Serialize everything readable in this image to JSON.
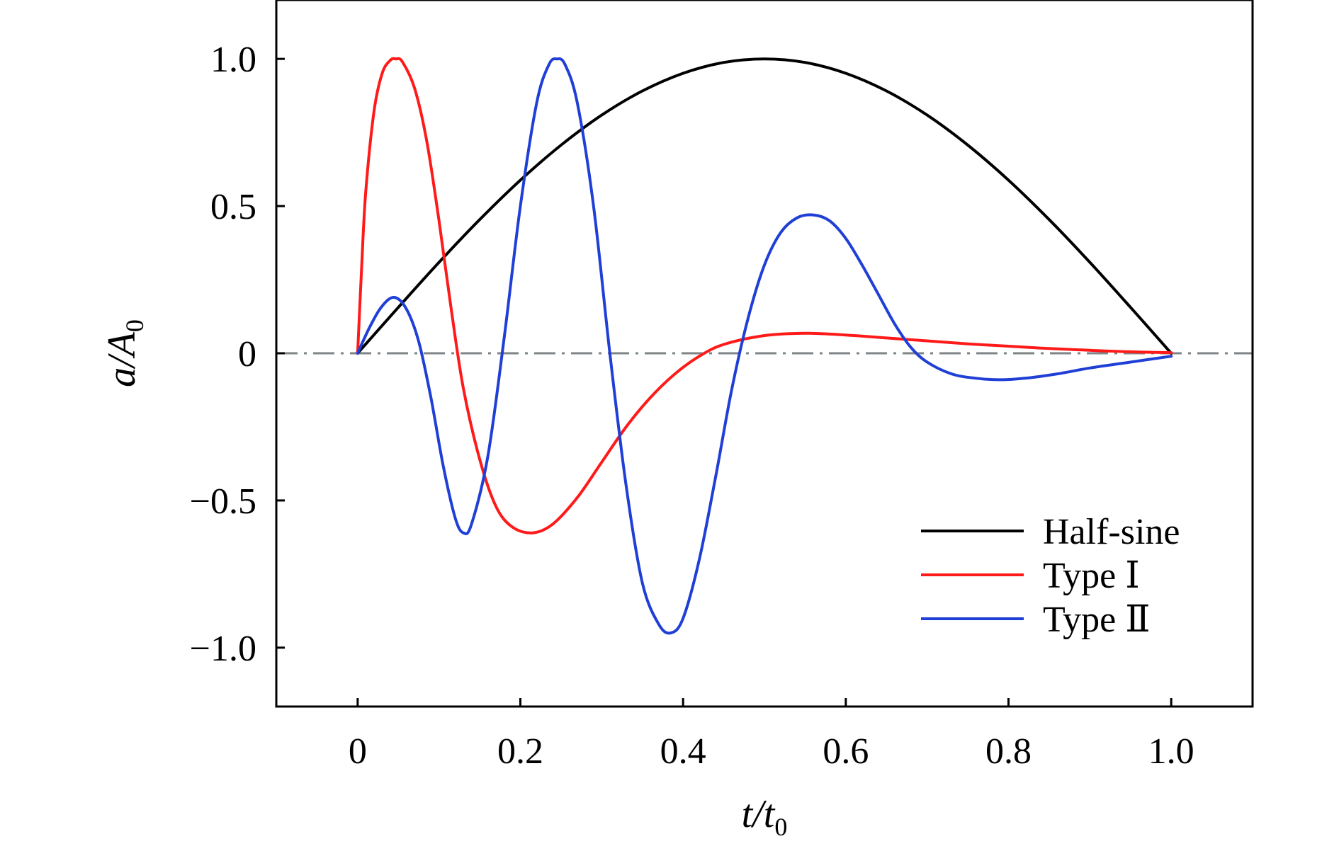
{
  "chart_data": {
    "type": "line",
    "title": "",
    "xlabel": {
      "main": "t/t",
      "sub": "0"
    },
    "ylabel": {
      "main": "a/A",
      "sub": "0"
    },
    "xlim": [
      -0.1,
      1.1
    ],
    "ylim": [
      -1.2,
      1.2
    ],
    "xticks": [
      0,
      0.2,
      0.4,
      0.6,
      0.8,
      1.0
    ],
    "xtick_labels": [
      "0",
      "0.2",
      "0.4",
      "0.6",
      "0.8",
      "1.0"
    ],
    "yticks": [
      1.0,
      0.5,
      0,
      -0.5,
      -1.0
    ],
    "ytick_labels": [
      "1.0",
      "0.5",
      "0",
      "−0.5",
      "−1.0"
    ],
    "grid": false,
    "legend_position": "bottom-right",
    "reference_line": {
      "y": 0,
      "style": "dash-dot",
      "color": "#7f8487"
    },
    "series": [
      {
        "name": "Half-sine",
        "color": "#000000",
        "points": [
          [
            0,
            0
          ],
          [
            0.05,
            0.156
          ],
          [
            0.1,
            0.309
          ],
          [
            0.15,
            0.454
          ],
          [
            0.2,
            0.588
          ],
          [
            0.25,
            0.707
          ],
          [
            0.3,
            0.809
          ],
          [
            0.35,
            0.891
          ],
          [
            0.4,
            0.951
          ],
          [
            0.45,
            0.988
          ],
          [
            0.5,
            1.0
          ],
          [
            0.55,
            0.988
          ],
          [
            0.6,
            0.951
          ],
          [
            0.65,
            0.891
          ],
          [
            0.7,
            0.809
          ],
          [
            0.75,
            0.707
          ],
          [
            0.8,
            0.588
          ],
          [
            0.85,
            0.454
          ],
          [
            0.9,
            0.309
          ],
          [
            0.95,
            0.156
          ],
          [
            1.0,
            0
          ]
        ]
      },
      {
        "name": "Type Ⅰ",
        "color": "#ff1a1a",
        "points": [
          [
            0,
            0
          ],
          [
            0.005,
            0.3
          ],
          [
            0.01,
            0.55
          ],
          [
            0.02,
            0.82
          ],
          [
            0.03,
            0.95
          ],
          [
            0.04,
            0.995
          ],
          [
            0.047,
            1.0
          ],
          [
            0.055,
            0.99
          ],
          [
            0.07,
            0.9
          ],
          [
            0.085,
            0.72
          ],
          [
            0.1,
            0.45
          ],
          [
            0.115,
            0.15
          ],
          [
            0.13,
            -0.12
          ],
          [
            0.15,
            -0.36
          ],
          [
            0.17,
            -0.52
          ],
          [
            0.19,
            -0.59
          ],
          [
            0.215,
            -0.61
          ],
          [
            0.24,
            -0.58
          ],
          [
            0.27,
            -0.49
          ],
          [
            0.3,
            -0.37
          ],
          [
            0.33,
            -0.25
          ],
          [
            0.36,
            -0.15
          ],
          [
            0.39,
            -0.07
          ],
          [
            0.42,
            -0.01
          ],
          [
            0.45,
            0.03
          ],
          [
            0.5,
            0.06
          ],
          [
            0.55,
            0.068
          ],
          [
            0.6,
            0.062
          ],
          [
            0.65,
            0.052
          ],
          [
            0.7,
            0.042
          ],
          [
            0.75,
            0.032
          ],
          [
            0.8,
            0.024
          ],
          [
            0.85,
            0.016
          ],
          [
            0.9,
            0.01
          ],
          [
            0.95,
            0.005
          ],
          [
            1.0,
            0.002
          ]
        ]
      },
      {
        "name": "Type Ⅱ",
        "color": "#1f3fd6",
        "points": [
          [
            0,
            0
          ],
          [
            0.015,
            0.09
          ],
          [
            0.03,
            0.16
          ],
          [
            0.045,
            0.19
          ],
          [
            0.06,
            0.15
          ],
          [
            0.075,
            0.04
          ],
          [
            0.09,
            -0.15
          ],
          [
            0.105,
            -0.38
          ],
          [
            0.12,
            -0.56
          ],
          [
            0.13,
            -0.61
          ],
          [
            0.14,
            -0.58
          ],
          [
            0.16,
            -0.35
          ],
          [
            0.18,
            0.05
          ],
          [
            0.2,
            0.5
          ],
          [
            0.22,
            0.85
          ],
          [
            0.235,
            0.98
          ],
          [
            0.245,
            1.0
          ],
          [
            0.255,
            0.98
          ],
          [
            0.27,
            0.85
          ],
          [
            0.29,
            0.5
          ],
          [
            0.31,
            0.0
          ],
          [
            0.33,
            -0.45
          ],
          [
            0.35,
            -0.78
          ],
          [
            0.37,
            -0.92
          ],
          [
            0.385,
            -0.95
          ],
          [
            0.4,
            -0.9
          ],
          [
            0.42,
            -0.7
          ],
          [
            0.44,
            -0.42
          ],
          [
            0.46,
            -0.12
          ],
          [
            0.48,
            0.12
          ],
          [
            0.5,
            0.3
          ],
          [
            0.52,
            0.41
          ],
          [
            0.54,
            0.46
          ],
          [
            0.56,
            0.47
          ],
          [
            0.58,
            0.45
          ],
          [
            0.6,
            0.39
          ],
          [
            0.62,
            0.3
          ],
          [
            0.64,
            0.2
          ],
          [
            0.66,
            0.1
          ],
          [
            0.68,
            0.02
          ],
          [
            0.7,
            -0.03
          ],
          [
            0.73,
            -0.07
          ],
          [
            0.76,
            -0.085
          ],
          [
            0.79,
            -0.09
          ],
          [
            0.82,
            -0.085
          ],
          [
            0.86,
            -0.07
          ],
          [
            0.9,
            -0.05
          ],
          [
            0.95,
            -0.03
          ],
          [
            1.0,
            -0.01
          ]
        ]
      }
    ]
  }
}
